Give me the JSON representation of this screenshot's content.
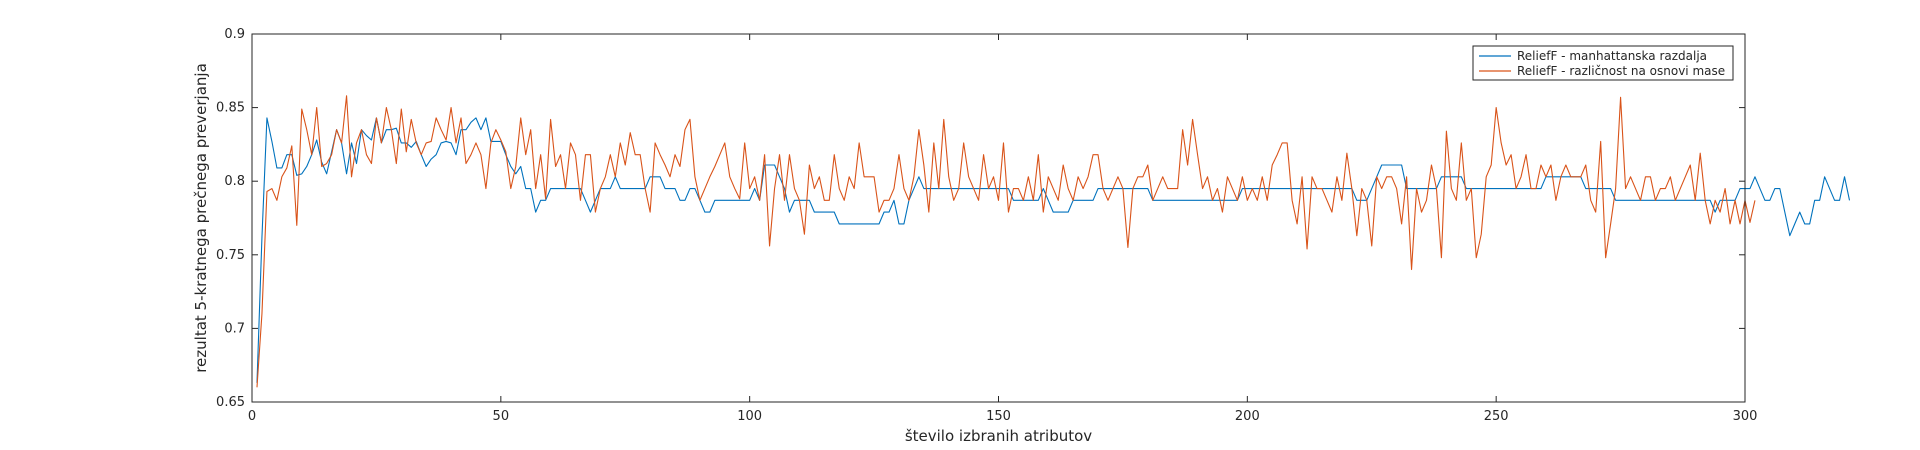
{
  "chart_data": {
    "type": "line",
    "title": "",
    "xlabel": "število izbranih atributov",
    "ylabel": "rezultat 5-kratnega prečnega preverjanja",
    "xlim": [
      0,
      300
    ],
    "ylim": [
      0.65,
      0.9
    ],
    "xticks": [
      0,
      50,
      100,
      150,
      200,
      250,
      300
    ],
    "yticks": [
      0.65,
      0.7,
      0.75,
      0.8,
      0.85,
      0.9
    ],
    "xtick_labels": [
      "0",
      "50",
      "100",
      "150",
      "200",
      "250",
      "300"
    ],
    "ytick_labels": [
      "0.65",
      "0.7",
      "0.75",
      "0.8",
      "0.85",
      "0.9"
    ],
    "grid": false,
    "legend_position": "top-right",
    "series": [
      {
        "name": "ReliefF - manhattanska razdalja",
        "color": "#0072BD",
        "x_start": 1,
        "values": [
          0.663,
          0.762,
          0.843,
          0.827,
          0.809,
          0.809,
          0.818,
          0.818,
          0.804,
          0.805,
          0.81,
          0.818,
          0.828,
          0.813,
          0.805,
          0.82,
          0.835,
          0.826,
          0.805,
          0.826,
          0.812,
          0.835,
          0.831,
          0.828,
          0.843,
          0.826,
          0.835,
          0.835,
          0.836,
          0.826,
          0.826,
          0.823,
          0.827,
          0.818,
          0.81,
          0.815,
          0.818,
          0.826,
          0.827,
          0.826,
          0.818,
          0.835,
          0.835,
          0.84,
          0.843,
          0.835,
          0.843,
          0.827,
          0.827,
          0.827,
          0.818,
          0.81,
          0.805,
          0.81,
          0.795,
          0.795,
          0.779,
          0.787,
          0.787,
          0.795,
          0.795,
          0.795,
          0.795,
          0.795,
          0.795,
          0.795,
          0.787,
          0.779,
          0.787,
          0.795,
          0.795,
          0.795,
          0.803,
          0.795,
          0.795,
          0.795,
          0.795,
          0.795,
          0.795,
          0.803,
          0.803,
          0.803,
          0.795,
          0.795,
          0.795,
          0.787,
          0.787,
          0.795,
          0.795,
          0.787,
          0.779,
          0.779,
          0.787,
          0.787,
          0.787,
          0.787,
          0.787,
          0.787,
          0.787,
          0.787,
          0.795,
          0.787,
          0.811,
          0.811,
          0.811,
          0.803,
          0.795,
          0.779,
          0.787,
          0.787,
          0.787,
          0.787,
          0.779,
          0.779,
          0.779,
          0.779,
          0.779,
          0.771,
          0.771,
          0.771,
          0.771,
          0.771,
          0.771,
          0.771,
          0.771,
          0.771,
          0.779,
          0.779,
          0.787,
          0.771,
          0.771,
          0.787,
          0.795,
          0.803,
          0.795,
          0.795,
          0.795,
          0.795,
          0.795,
          0.795,
          0.795,
          0.795,
          0.795,
          0.795,
          0.795,
          0.795,
          0.795,
          0.795,
          0.795,
          0.795,
          0.795,
          0.795,
          0.787,
          0.787,
          0.787,
          0.787,
          0.787,
          0.787,
          0.795,
          0.787,
          0.779,
          0.779,
          0.779,
          0.779,
          0.787,
          0.787,
          0.787,
          0.787,
          0.787,
          0.795,
          0.795,
          0.795,
          0.795,
          0.795,
          0.795,
          0.795,
          0.795,
          0.795,
          0.795,
          0.795,
          0.787,
          0.787,
          0.787,
          0.787,
          0.787,
          0.787,
          0.787,
          0.787,
          0.787,
          0.787,
          0.787,
          0.787,
          0.787,
          0.787,
          0.787,
          0.787,
          0.787,
          0.787,
          0.795,
          0.795,
          0.795,
          0.795,
          0.795,
          0.795,
          0.795,
          0.795,
          0.795,
          0.795,
          0.795,
          0.795,
          0.795,
          0.795,
          0.795,
          0.795,
          0.795,
          0.795,
          0.795,
          0.795,
          0.795,
          0.795,
          0.795,
          0.787,
          0.787,
          0.787,
          0.795,
          0.803,
          0.811,
          0.811,
          0.811,
          0.811,
          0.811,
          0.795,
          0.795,
          0.795,
          0.795,
          0.795,
          0.795,
          0.795,
          0.803,
          0.803,
          0.803,
          0.803,
          0.803,
          0.795,
          0.795,
          0.795,
          0.795,
          0.795,
          0.795,
          0.795,
          0.795,
          0.795,
          0.795,
          0.795,
          0.795,
          0.795,
          0.795,
          0.795,
          0.795,
          0.803,
          0.803,
          0.803,
          0.803,
          0.803,
          0.803,
          0.803,
          0.803,
          0.795,
          0.795,
          0.795,
          0.795,
          0.795,
          0.795,
          0.787,
          0.787,
          0.787,
          0.787,
          0.787,
          0.787,
          0.787,
          0.787,
          0.787,
          0.787,
          0.787,
          0.787,
          0.787,
          0.787,
          0.787,
          0.787,
          0.787,
          0.787,
          0.787,
          0.787,
          0.779,
          0.787,
          0.787,
          0.787,
          0.787,
          0.795,
          0.795,
          0.795,
          0.803,
          0.795,
          0.787,
          0.787,
          0.795,
          0.795,
          0.779,
          0.763,
          0.771,
          0.779,
          0.771,
          0.771,
          0.787,
          0.787,
          0.803,
          0.795,
          0.787,
          0.787,
          0.803,
          0.787
        ]
      },
      {
        "name": "ReliefF - različnost na osnovi mase",
        "color": "#D95319",
        "x_start": 1,
        "values": [
          0.66,
          0.71,
          0.793,
          0.795,
          0.787,
          0.803,
          0.809,
          0.824,
          0.77,
          0.849,
          0.835,
          0.818,
          0.85,
          0.81,
          0.812,
          0.818,
          0.835,
          0.826,
          0.858,
          0.803,
          0.826,
          0.835,
          0.818,
          0.812,
          0.843,
          0.826,
          0.85,
          0.835,
          0.812,
          0.849,
          0.82,
          0.842,
          0.826,
          0.818,
          0.826,
          0.827,
          0.843,
          0.835,
          0.828,
          0.85,
          0.826,
          0.843,
          0.812,
          0.818,
          0.826,
          0.818,
          0.795,
          0.826,
          0.835,
          0.828,
          0.82,
          0.795,
          0.81,
          0.843,
          0.818,
          0.835,
          0.795,
          0.818,
          0.788,
          0.842,
          0.81,
          0.818,
          0.795,
          0.826,
          0.818,
          0.787,
          0.818,
          0.818,
          0.779,
          0.795,
          0.803,
          0.818,
          0.803,
          0.826,
          0.811,
          0.833,
          0.818,
          0.818,
          0.795,
          0.779,
          0.826,
          0.818,
          0.811,
          0.803,
          0.818,
          0.81,
          0.835,
          0.842,
          0.803,
          0.787,
          0.795,
          0.803,
          0.81,
          0.818,
          0.826,
          0.803,
          0.795,
          0.788,
          0.826,
          0.795,
          0.803,
          0.787,
          0.818,
          0.756,
          0.795,
          0.818,
          0.787,
          0.818,
          0.795,
          0.787,
          0.764,
          0.811,
          0.795,
          0.803,
          0.787,
          0.787,
          0.818,
          0.795,
          0.787,
          0.803,
          0.795,
          0.826,
          0.803,
          0.803,
          0.803,
          0.779,
          0.787,
          0.787,
          0.795,
          0.818,
          0.795,
          0.787,
          0.803,
          0.835,
          0.811,
          0.779,
          0.826,
          0.795,
          0.842,
          0.803,
          0.787,
          0.795,
          0.826,
          0.803,
          0.795,
          0.787,
          0.818,
          0.795,
          0.803,
          0.787,
          0.826,
          0.779,
          0.795,
          0.795,
          0.787,
          0.803,
          0.787,
          0.818,
          0.779,
          0.803,
          0.795,
          0.787,
          0.811,
          0.795,
          0.787,
          0.803,
          0.795,
          0.803,
          0.818,
          0.818,
          0.795,
          0.787,
          0.795,
          0.803,
          0.795,
          0.755,
          0.795,
          0.803,
          0.803,
          0.811,
          0.787,
          0.795,
          0.803,
          0.795,
          0.795,
          0.795,
          0.835,
          0.811,
          0.842,
          0.818,
          0.795,
          0.803,
          0.787,
          0.795,
          0.779,
          0.803,
          0.795,
          0.787,
          0.803,
          0.787,
          0.795,
          0.787,
          0.803,
          0.787,
          0.811,
          0.818,
          0.826,
          0.826,
          0.787,
          0.771,
          0.803,
          0.754,
          0.803,
          0.795,
          0.795,
          0.787,
          0.779,
          0.803,
          0.787,
          0.819,
          0.795,
          0.763,
          0.795,
          0.787,
          0.756,
          0.803,
          0.795,
          0.803,
          0.803,
          0.795,
          0.771,
          0.803,
          0.74,
          0.795,
          0.779,
          0.787,
          0.811,
          0.795,
          0.748,
          0.834,
          0.795,
          0.787,
          0.826,
          0.787,
          0.795,
          0.748,
          0.764,
          0.803,
          0.811,
          0.85,
          0.826,
          0.811,
          0.818,
          0.795,
          0.803,
          0.818,
          0.795,
          0.795,
          0.811,
          0.803,
          0.811,
          0.787,
          0.803,
          0.811,
          0.803,
          0.803,
          0.803,
          0.811,
          0.787,
          0.779,
          0.827,
          0.748,
          0.771,
          0.795,
          0.857,
          0.795,
          0.803,
          0.795,
          0.787,
          0.803,
          0.803,
          0.787,
          0.795,
          0.795,
          0.803,
          0.787,
          0.795,
          0.803,
          0.811,
          0.787,
          0.819,
          0.787,
          0.771,
          0.787,
          0.779,
          0.795,
          0.771,
          0.787,
          0.771,
          0.787,
          0.772,
          0.787
        ]
      }
    ]
  }
}
